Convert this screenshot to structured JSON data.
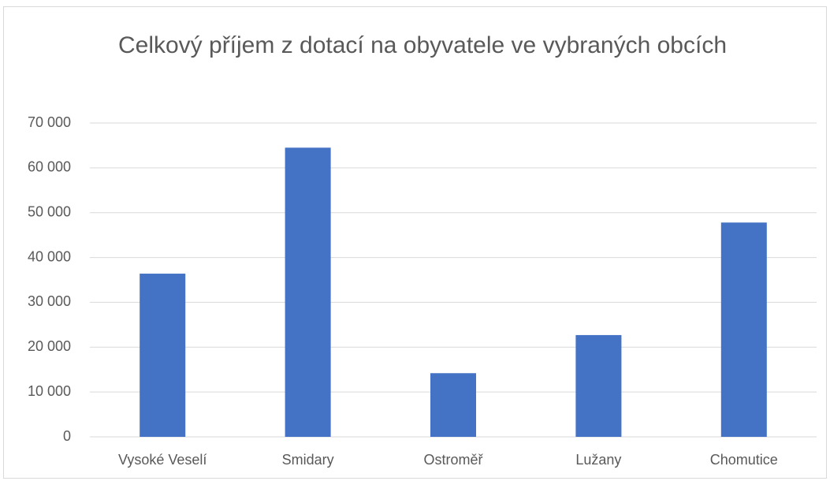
{
  "chart_data": {
    "type": "bar",
    "title": "Celkový příjem z dotací na obyvatele ve vybraných obcích",
    "categories": [
      "Vysoké Veselí",
      "Smidary",
      "Ostroměř",
      "Lužany",
      "Chomutice"
    ],
    "values": [
      36400,
      64500,
      14200,
      22700,
      47800
    ],
    "color": "#4472c4",
    "ylim": [
      0,
      70000
    ],
    "yticks": [
      0,
      {
        "value": 10000,
        "label": "10 000"
      },
      {
        "value": 20000,
        "label": "20 000"
      },
      {
        "value": 30000,
        "label": "30 000"
      },
      {
        "value": 40000,
        "label": "40 000"
      },
      {
        "value": 50000,
        "label": "50 000"
      },
      {
        "value": 60000,
        "label": "60 000"
      },
      {
        "value": 70000,
        "label": "70 000"
      }
    ],
    "grid": true
  }
}
